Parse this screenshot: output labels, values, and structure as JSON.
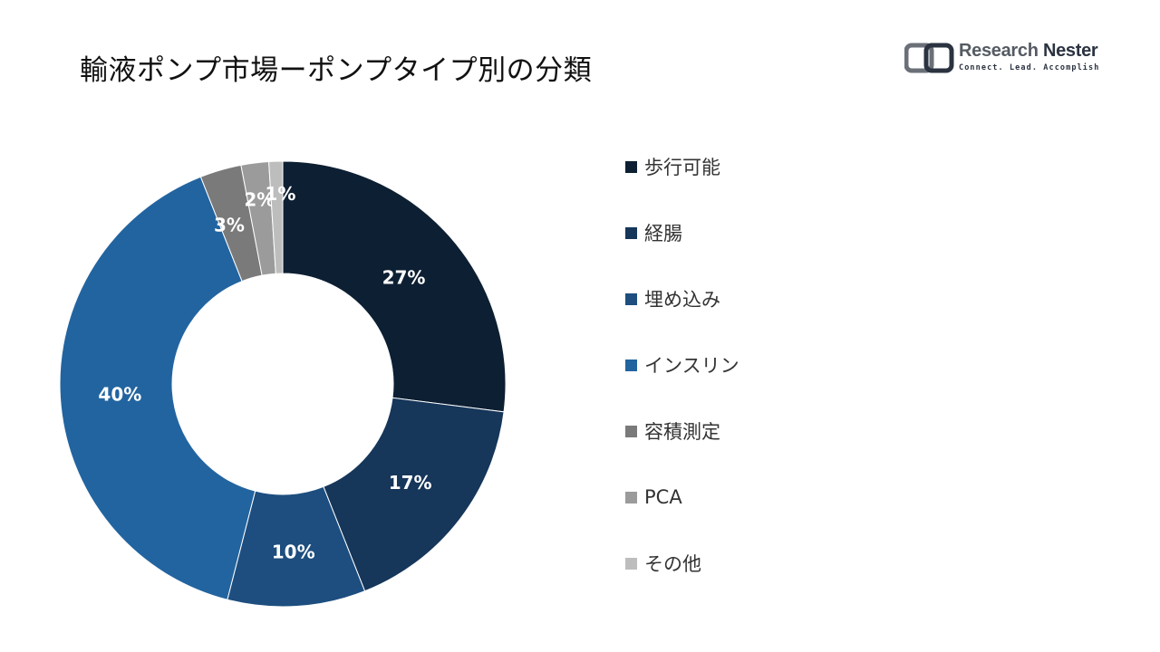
{
  "page": {
    "title": "輸液ポンプ市場ーポンプタイプ別の分類"
  },
  "logo": {
    "name_part1": "Research",
    "name_part2": "Nester",
    "tagline": "Connect. Lead. Accomplish"
  },
  "chart_data": {
    "type": "pie",
    "variant": "donut",
    "title": "",
    "categories": [
      "歩行可能",
      "経腸",
      "埋め込み",
      "インスリン",
      "容積測定",
      "PCA",
      "その他"
    ],
    "values": [
      27,
      17,
      10,
      40,
      3,
      2,
      1
    ],
    "value_labels": [
      "27%",
      "17%",
      "10%",
      "40%",
      "3%",
      "2%",
      "1%"
    ],
    "colors": [
      "#0d1f33",
      "#16365a",
      "#1d4e7f",
      "#2264a0",
      "#7a7a7a",
      "#9b9b9b",
      "#bdbdbd"
    ],
    "label_color": "#ffffff",
    "legend_position": "right",
    "start_angle": "12 o'clock",
    "direction": "clockwise"
  }
}
